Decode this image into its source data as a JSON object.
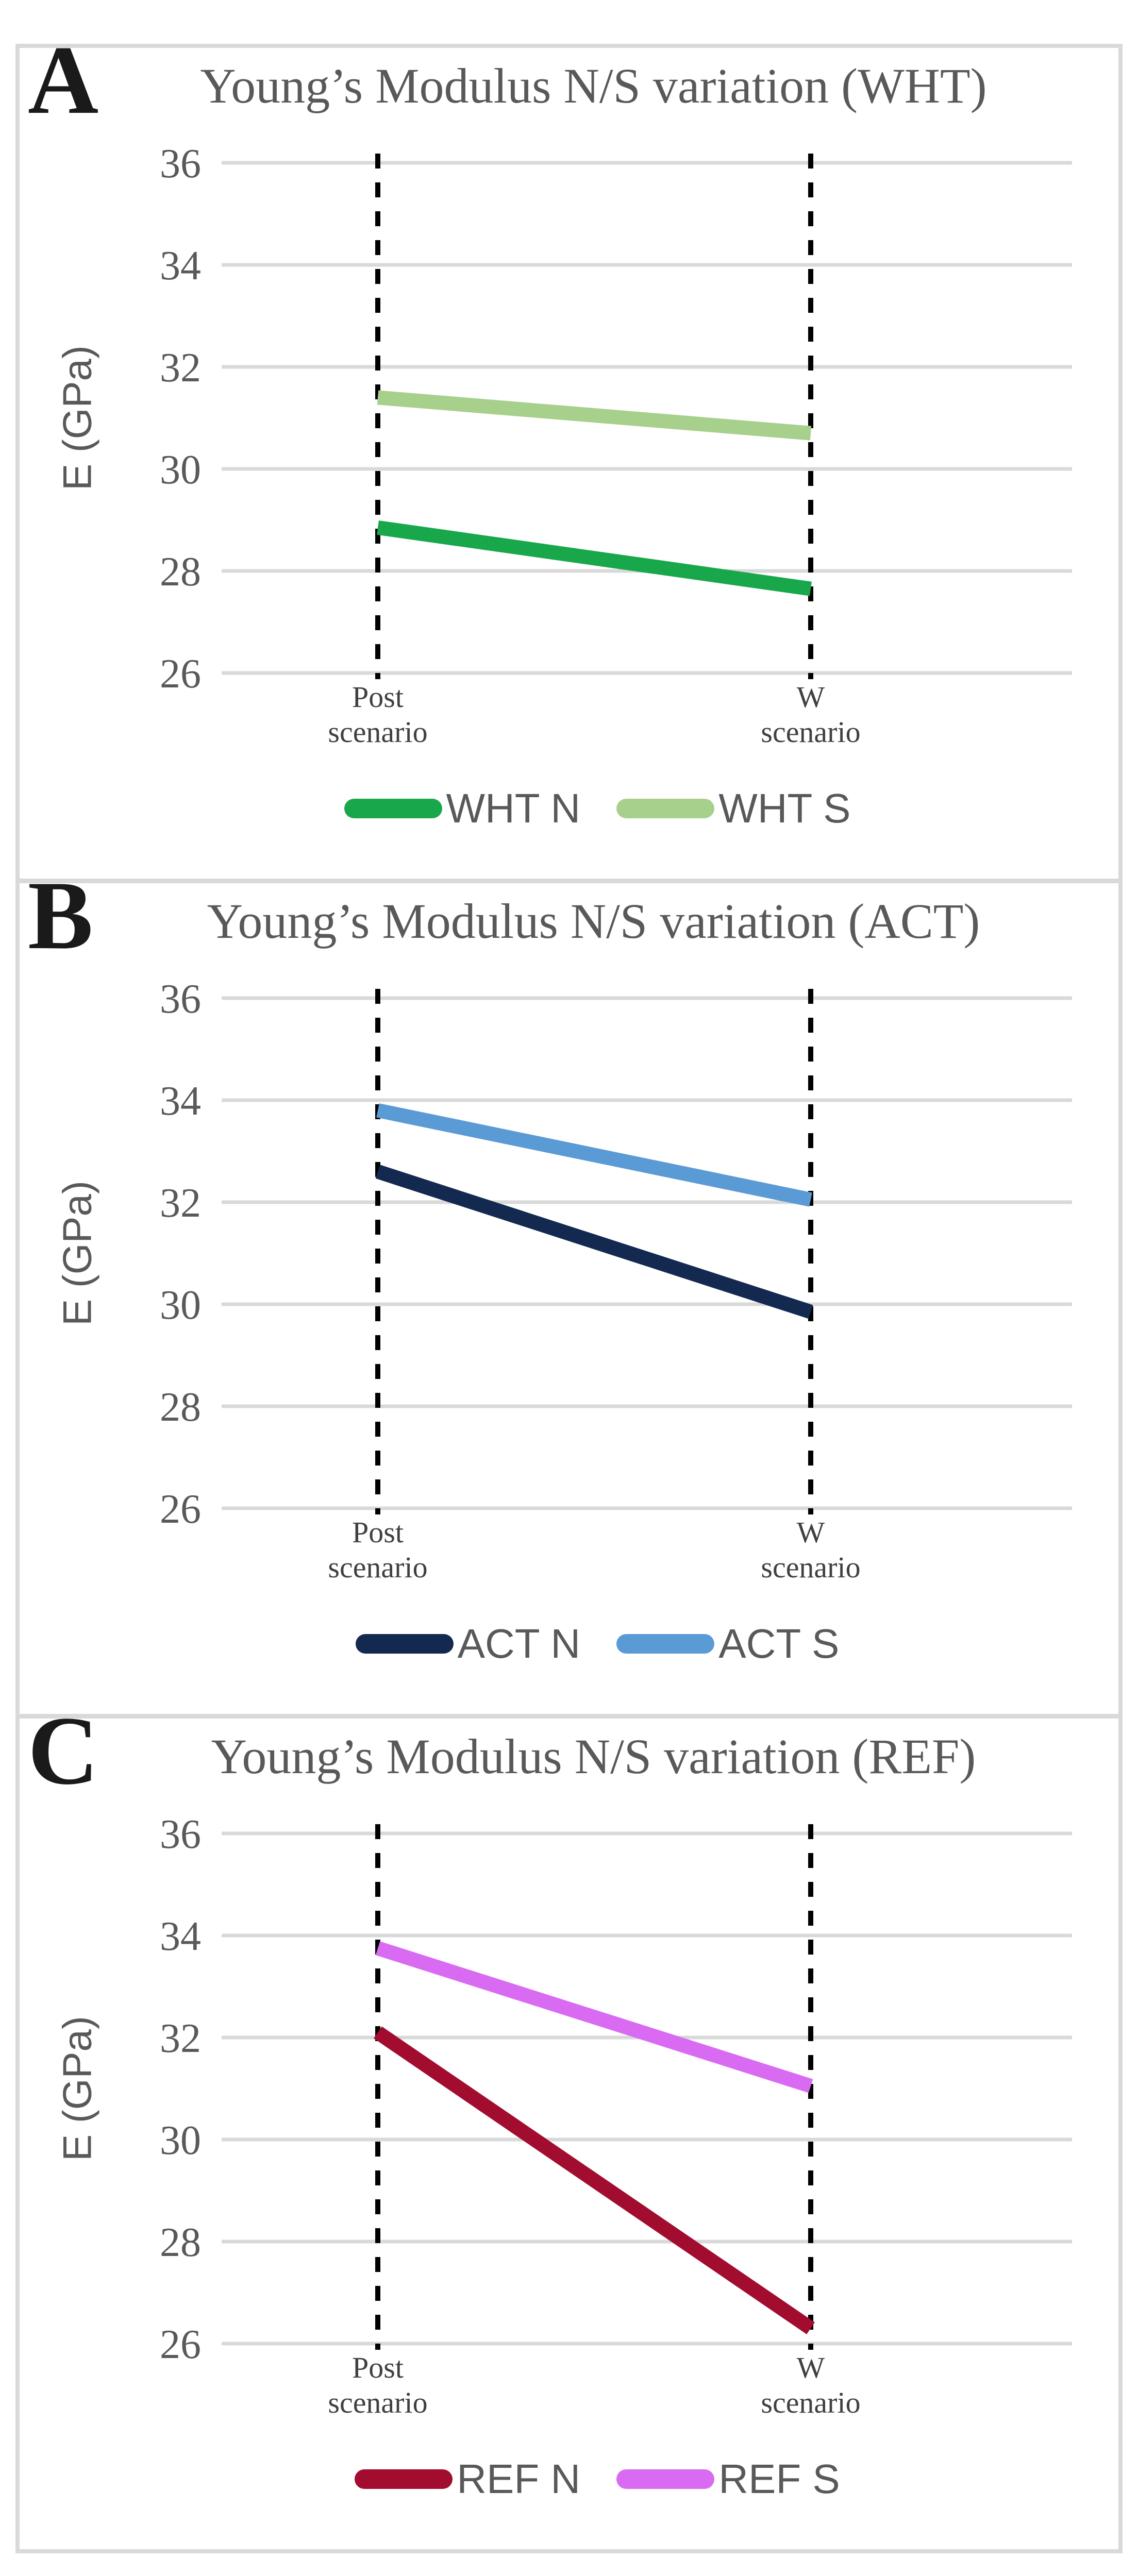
{
  "theme": {
    "gridline_color": "#D9D9D9",
    "dash_line_color": "#000000",
    "axis_text_color": "#595959",
    "category_text_color": "#404040",
    "title_text_color": "#595959",
    "panel_letter_color": "#1A1A1A",
    "border_color": "#D9D9D9",
    "background_color": "#FFFFFF"
  },
  "chart_data": [
    {
      "type": "line",
      "panel_label": "A",
      "title": "Young’s Modulus N/S variation (WHT)",
      "ylabel": "E (GPa)",
      "xlabel": "",
      "ylim": [
        26,
        36
      ],
      "yticks": [
        36,
        34,
        32,
        30,
        28,
        26
      ],
      "grid": true,
      "legend_position": "bottom",
      "categories": [
        "Post scenario",
        "W scenario"
      ],
      "categories_multiline": [
        [
          "Post",
          "scenario"
        ],
        [
          "W",
          "scenario"
        ]
      ],
      "series": [
        {
          "name": "WHT N",
          "color": "#18A84B",
          "values": [
            28.85,
            27.65
          ]
        },
        {
          "name": "WHT S",
          "color": "#A8D08D",
          "values": [
            31.4,
            30.7
          ]
        }
      ]
    },
    {
      "type": "line",
      "panel_label": "B",
      "title": "Young’s Modulus N/S variation (ACT)",
      "ylabel": "E (GPa)",
      "xlabel": "",
      "ylim": [
        26,
        36
      ],
      "yticks": [
        36,
        34,
        32,
        30,
        28,
        26
      ],
      "grid": true,
      "legend_position": "bottom",
      "categories": [
        "Post scenario",
        "W scenario"
      ],
      "categories_multiline": [
        [
          "Post",
          "scenario"
        ],
        [
          "W",
          "scenario"
        ]
      ],
      "series": [
        {
          "name": "ACT N",
          "color": "#132950",
          "values": [
            32.6,
            29.85
          ]
        },
        {
          "name": "ACT S",
          "color": "#5B9BD5",
          "values": [
            33.8,
            32.05
          ]
        }
      ]
    },
    {
      "type": "line",
      "panel_label": "C",
      "title": "Young’s Modulus N/S variation (REF)",
      "ylabel": "E (GPa)",
      "xlabel": "",
      "ylim": [
        26,
        36
      ],
      "yticks": [
        36,
        34,
        32,
        30,
        28,
        26
      ],
      "grid": true,
      "legend_position": "bottom",
      "categories": [
        "Post scenario",
        "W scenario"
      ],
      "categories_multiline": [
        [
          "Post",
          "scenario"
        ],
        [
          "W",
          "scenario"
        ]
      ],
      "series": [
        {
          "name": "REF N",
          "color": "#A20C2F",
          "values": [
            32.1,
            26.3
          ]
        },
        {
          "name": "REF S",
          "color": "#D96BF2",
          "values": [
            33.75,
            31.05
          ]
        }
      ]
    }
  ]
}
